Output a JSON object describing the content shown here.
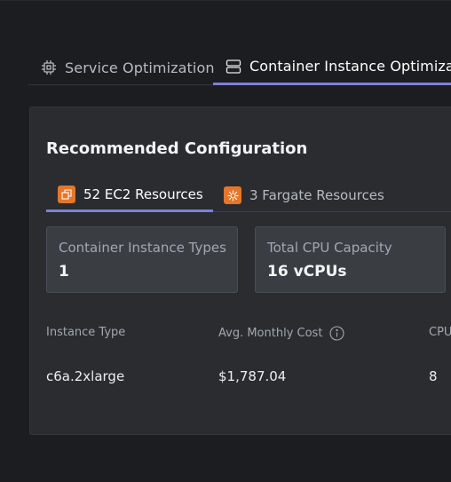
{
  "tabs": [
    {
      "label": "Service Optimization",
      "icon": "chip-icon",
      "active": false
    },
    {
      "label": "Container Instance Optimization",
      "icon": "server-stack-icon",
      "active": true
    }
  ],
  "card": {
    "title": "Recommended Configuration",
    "sub_tabs": [
      {
        "label": "52 EC2 Resources",
        "icon": "ec2-icon",
        "active": true
      },
      {
        "label": "3 Fargate Resources",
        "icon": "fargate-icon",
        "active": false
      }
    ],
    "stats": [
      {
        "label": "Container Instance Types",
        "value": "1"
      },
      {
        "label": "Total CPU Capacity",
        "value": "16 vCPUs"
      }
    ],
    "table": {
      "headers": [
        "Instance Type",
        "Avg. Monthly Cost",
        "CPU"
      ],
      "rows": [
        [
          "c6a.2xlarge",
          "$1,787.04",
          "8"
        ]
      ]
    }
  },
  "colors": {
    "background": "#1c1d20",
    "card": "#2a2c30",
    "accent": "#7b7fe0",
    "resource_icon": "#e5762a"
  }
}
